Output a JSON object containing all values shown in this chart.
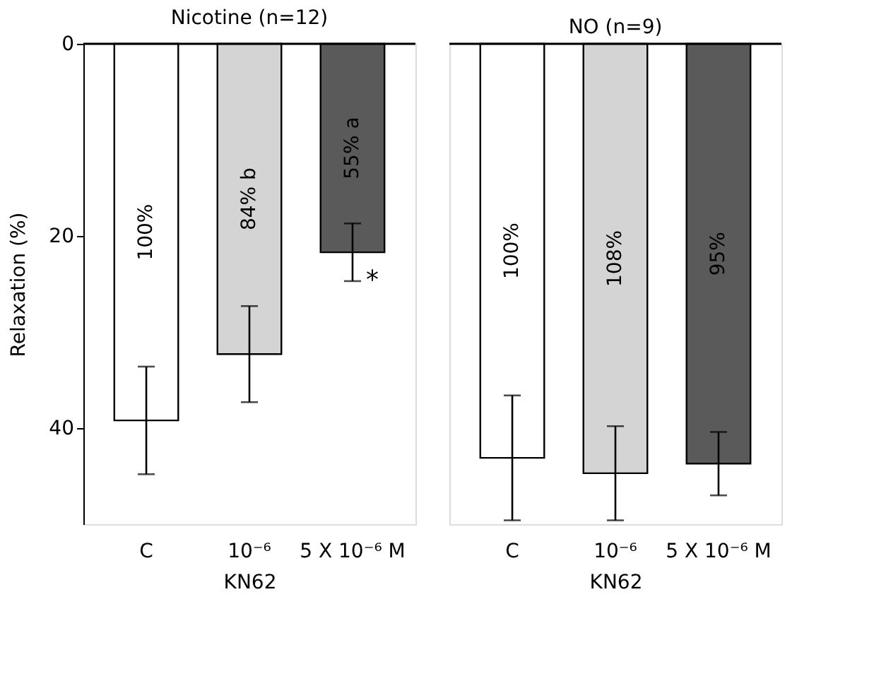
{
  "chart_data": [
    {
      "type": "bar",
      "title": "Nicotine (n=12)",
      "ylabel": "Relaxation (%)",
      "xlabel": "KN62",
      "categories": [
        "C",
        "10⁻⁶",
        "5 X 10⁻⁶ M"
      ],
      "values": [
        39.2,
        32.3,
        21.7
      ],
      "errors": [
        5.6,
        5,
        3
      ],
      "colors": [
        "#ffffff",
        "#d4d4d4",
        "#5a5a5a"
      ],
      "annotations": [
        "100%",
        "84% b",
        "55% a",
        {
          "text": "*",
          "x": "5 X 10⁻⁶ M",
          "y": 24.7
        }
      ],
      "ylim": [
        50,
        0
      ],
      "yticks": [
        0,
        20,
        40
      ]
    },
    {
      "type": "bar",
      "title": "NO (n=9)",
      "xlabel": "KN62",
      "categories": [
        "C",
        "10⁻⁶",
        "5 X 10⁻⁶ M"
      ],
      "values": [
        43.1,
        44.7,
        43.7
      ],
      "errors": [
        6.5,
        4.9,
        3.3
      ],
      "colors": [
        "#ffffff",
        "#d4d4d4",
        "#5a5a5a"
      ],
      "annotations": [
        "100%",
        "108%",
        "95%"
      ],
      "ylim": [
        50,
        0
      ],
      "tick_labels": "x"
    }
  ]
}
